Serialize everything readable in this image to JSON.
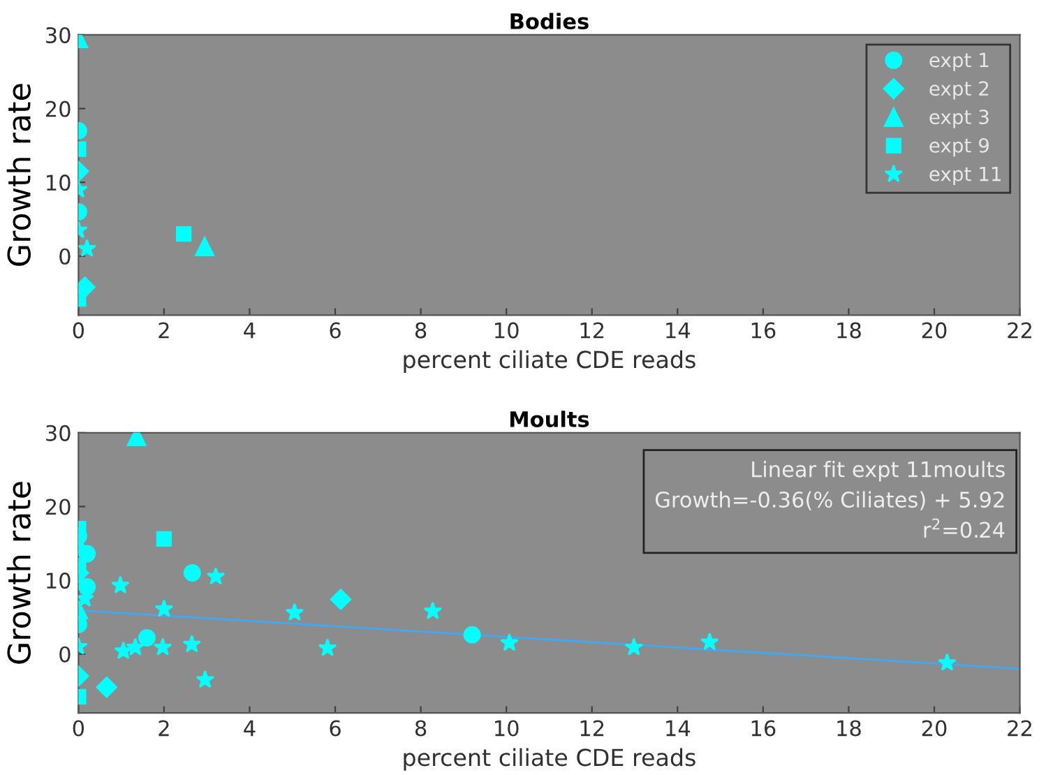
{
  "chart_data": [
    {
      "type": "scatter",
      "title": "Bodies",
      "xlabel": "percent ciliate CDE reads",
      "ylabel": "Growth rate",
      "xlim": [
        0,
        22
      ],
      "xticks": [
        0,
        2,
        4,
        6,
        8,
        10,
        12,
        14,
        16,
        18,
        20,
        22
      ],
      "ylim": [
        -8,
        30
      ],
      "yticks": [
        0,
        10,
        20,
        30
      ],
      "grid": false,
      "legend": "top right",
      "series": [
        {
          "name": "expt 1",
          "color": "#00ffff",
          "marker": "circle",
          "x": [
            0,
            0
          ],
          "values": [
            17,
            6
          ]
        },
        {
          "name": "expt 2",
          "color": "#00ffff",
          "marker": "diamond",
          "x": [
            0,
            0.15
          ],
          "values": [
            11.5,
            -4.2
          ]
        },
        {
          "name": "expt 3",
          "color": "#00ffff",
          "marker": "triangle",
          "x": [
            0,
            2.95
          ],
          "values": [
            29.5,
            1.3
          ]
        },
        {
          "name": "expt 9",
          "color": "#00ffff",
          "marker": "square",
          "x": [
            0,
            0,
            2.46
          ],
          "values": [
            14.5,
            -5.8,
            3.0
          ]
        },
        {
          "name": "expt 11",
          "color": "#00ffff",
          "marker": "star",
          "x": [
            0,
            0,
            0.2
          ],
          "values": [
            9,
            3.5,
            1
          ]
        }
      ]
    },
    {
      "type": "scatter",
      "title": "Moults",
      "xlabel": "percent ciliate CDE reads",
      "ylabel": "Growth rate",
      "xlim": [
        0,
        22
      ],
      "xticks": [
        0,
        2,
        4,
        6,
        8,
        10,
        12,
        14,
        16,
        18,
        20,
        22
      ],
      "ylim": [
        -8,
        30
      ],
      "yticks": [
        0,
        10,
        20,
        30
      ],
      "grid": false,
      "annotations": [
        "Linear fit expt 11moults\nGrowth=-0.36(% Ciliates) + 5.92\nr$^{2}$=0.24"
      ],
      "series": [
        {
          "color": "#00ffff",
          "marker": "circle",
          "x": [
            0,
            0.2,
            0.2,
            0,
            1.6,
            2.66,
            9.2
          ],
          "values": [
            16,
            13.6,
            9.1,
            4,
            2.2,
            11.0,
            2.6
          ]
        },
        {
          "color": "#00ffff",
          "marker": "diamond",
          "x": [
            0,
            0,
            0.66,
            6.13
          ],
          "values": [
            11,
            -3,
            -4.5,
            7.4
          ]
        },
        {
          "color": "#00ffff",
          "marker": "triangle",
          "x": [
            0,
            0,
            1.36
          ],
          "values": [
            15,
            6,
            29.5
          ]
        },
        {
          "color": "#00ffff",
          "marker": "square",
          "x": [
            0,
            0,
            0,
            2.0
          ],
          "values": [
            17,
            12,
            -5.8,
            15.6
          ]
        },
        {
          "color": "#00ffff",
          "marker": "star",
          "x": [
            0,
            0.15,
            0,
            0.98,
            3.21,
            2.0,
            1.05,
            1.33,
            1.97,
            2.65,
            2.96,
            5.05,
            5.82,
            8.28,
            10.07,
            12.98,
            14.75,
            20.3
          ],
          "values": [
            14,
            7.5,
            1,
            9.3,
            10.5,
            6.1,
            0.4,
            0.9,
            0.9,
            1.3,
            -3.5,
            5.6,
            0.8,
            5.8,
            1.5,
            0.9,
            1.6,
            -1.2
          ]
        },
        {
          "type": "line",
          "color": "#3fa9f5",
          "marker": "none",
          "x": [
            0,
            22
          ],
          "values": [
            5.92,
            -2.0
          ]
        }
      ]
    }
  ]
}
